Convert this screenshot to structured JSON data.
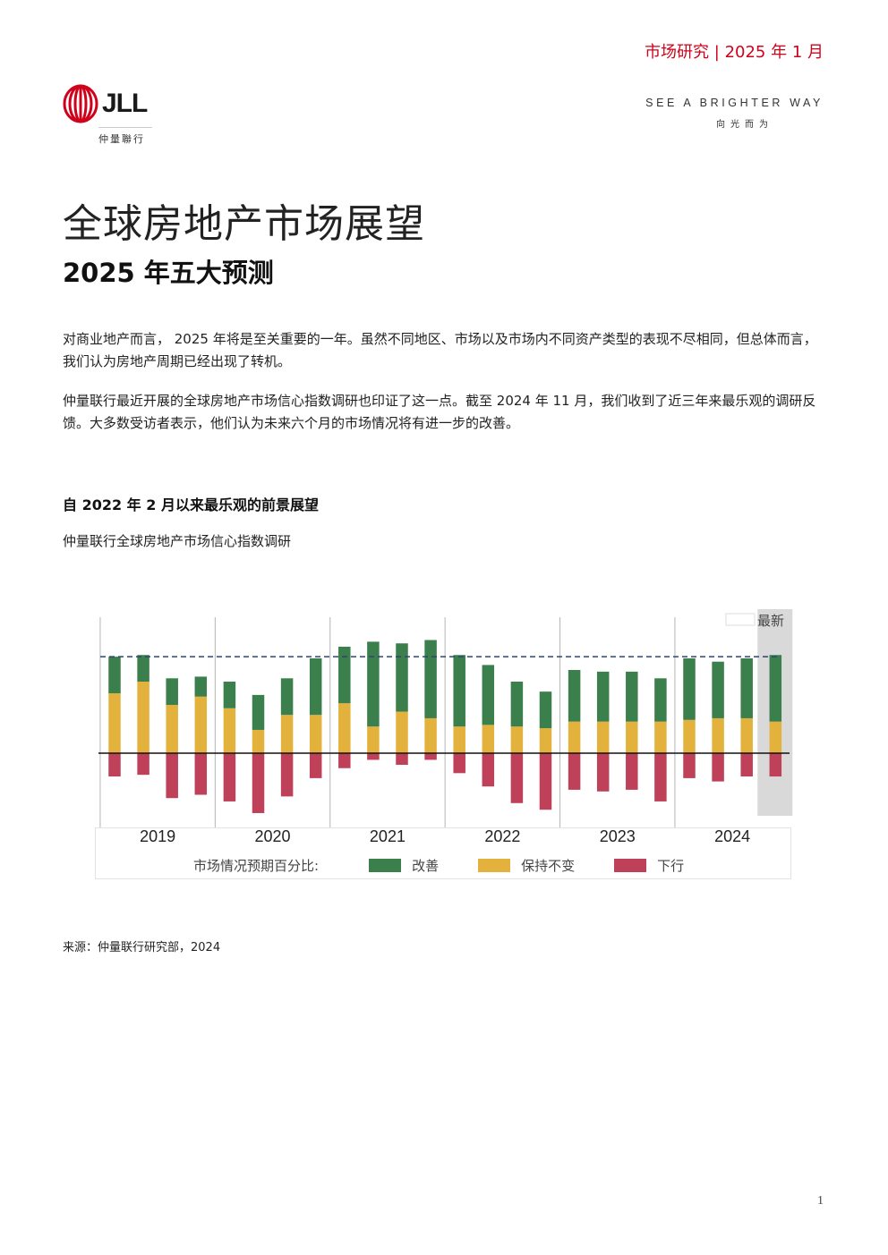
{
  "header": {
    "right_text": "市场研究 | 2025 年 1 月"
  },
  "logo": {
    "name": "JLL",
    "subtitle": "仲量聯行"
  },
  "tagline": {
    "en": "SEE A BRIGHTER WAY",
    "cn": "向光而为"
  },
  "title": "全球房地产市场展望",
  "subtitle": "2025 年五大预测",
  "paragraphs": [
    "对商业地产而言， 2025 年将是至关重要的一年。虽然不同地区、市场以及市场内不同资产类型的表现不尽相同，但总体而言，我们认为房地产周期已经出现了转机。",
    "仲量联行最近开展的全球房地产市场信心指数调研也印证了这一点。截至 2024 年 11 月，我们收到了近三年来最乐观的调研反馈。大多数受访者表示，他们认为未来六个月的市场情况将有进一步的改善。"
  ],
  "chart_title": "自 2022 年 2 月以来最乐观的前景展望",
  "chart_subtitle": "仲量联行全球房地产市场信心指数调研",
  "chart_data": {
    "type": "bar",
    "stacked": true,
    "title": "自 2022 年 2 月以来最乐观的前景展望",
    "subtitle": "仲量联行全球房地产市场信心指数调研",
    "year_labels": [
      "2019",
      "2020",
      "2021",
      "2022",
      "2023",
      "2024"
    ],
    "year_group_sizes": [
      4,
      4,
      4,
      4,
      4,
      4
    ],
    "legend_prefix": "市场情况预期百分比:",
    "latest_label": "最新",
    "series": [
      {
        "name": "改善",
        "color": "#3b7f4c",
        "values": [
          22,
          16,
          16,
          12,
          16,
          21,
          22,
          34,
          34,
          51,
          41,
          47,
          43,
          36,
          27,
          22,
          31,
          30,
          30,
          26,
          37,
          34,
          36,
          40
        ]
      },
      {
        "name": "保持不变",
        "color": "#e3b23d",
        "values": [
          36,
          43,
          29,
          34,
          27,
          14,
          23,
          23,
          30,
          16,
          25,
          21,
          16,
          17,
          16,
          15,
          19,
          19,
          19,
          19,
          20,
          21,
          21,
          19
        ]
      },
      {
        "name": "下行",
        "color": "#bf4059",
        "values": [
          -14,
          -13,
          -27,
          -25,
          -29,
          -36,
          -26,
          -15,
          -9,
          -4,
          -7,
          -4,
          -12,
          -20,
          -30,
          -34,
          -22,
          -23,
          -22,
          -29,
          -15,
          -17,
          -14,
          -14
        ]
      }
    ],
    "reference_line": 58,
    "ylim": [
      -40,
      70
    ],
    "grid": false
  },
  "source": "来源：仲量联行研究部，2024",
  "page_number": "1"
}
